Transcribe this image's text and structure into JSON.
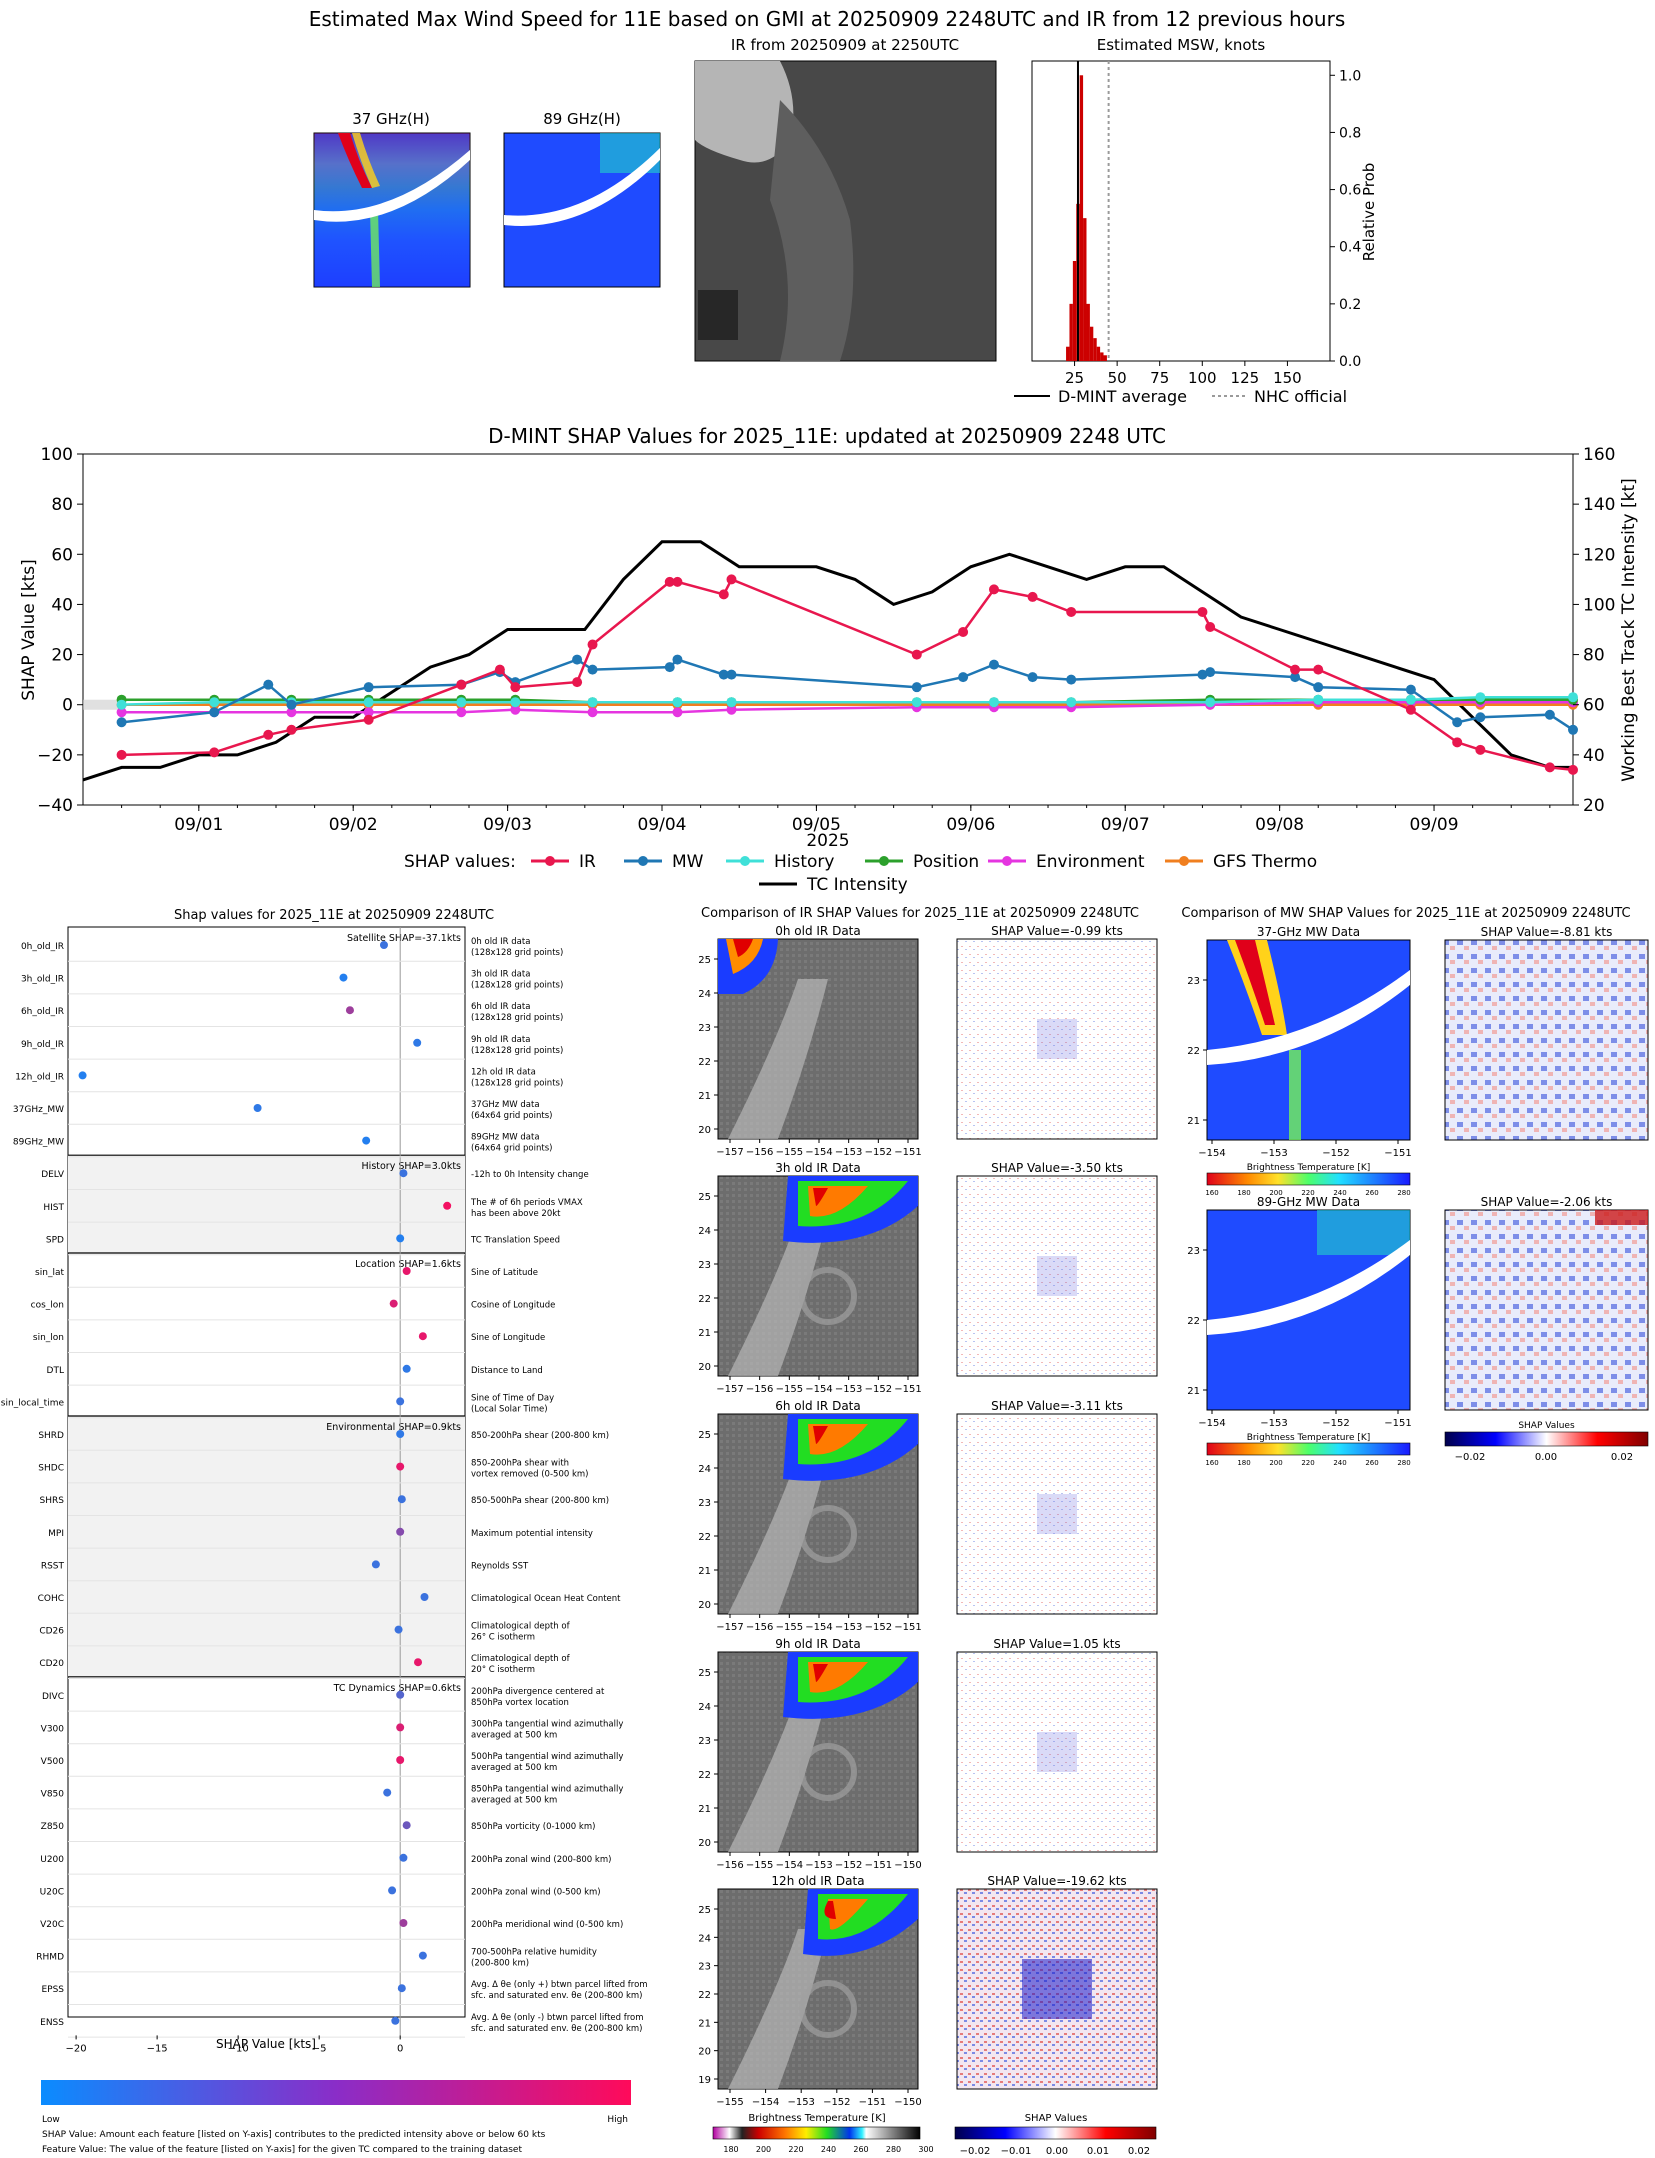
{
  "figure_title": "Estimated Max Wind Speed for 11E based on GMI at 20250909 2248UTC and IR from 12 previous hours",
  "panel_37": {
    "title": "37 GHz(H)"
  },
  "panel_89": {
    "title": "89 GHz(H)"
  },
  "panel_ir": {
    "title": "IR from 20250909 at 2250UTC"
  },
  "histogram": {
    "title": "Estimated MSW, knots",
    "ylabel": "Relative Prob",
    "xticks": [
      "25",
      "50",
      "75",
      "100",
      "125",
      "150"
    ],
    "yticks": [
      "0.0",
      "0.2",
      "0.4",
      "0.6",
      "0.8",
      "1.0"
    ],
    "legend": {
      "avg": "D-MINT average",
      "nhc": "NHC official"
    },
    "colors": {
      "bars": "#cc0000",
      "avg": "#000000",
      "nhc": "#9a9a9a"
    }
  },
  "shap_ts": {
    "title": "D-MINT SHAP Values for 2025_11E: updated at 20250909 2248 UTC",
    "xlabel": "2025",
    "ylabel_left": "SHAP Value [kts]",
    "ylabel_right": "Working Best Track TC Intensity [kt]",
    "xticks": [
      "09/01",
      "09/02",
      "09/03",
      "09/04",
      "09/05",
      "09/06",
      "09/07",
      "09/08",
      "09/09"
    ],
    "yticks_left": [
      "100",
      "80",
      "60",
      "40",
      "20",
      "0",
      "−20",
      "−40"
    ],
    "yticks_right": [
      "160",
      "140",
      "120",
      "100",
      "80",
      "60",
      "40",
      "20"
    ],
    "legend_label": "SHAP values:",
    "legend_items": [
      "IR",
      "MW",
      "History",
      "Position",
      "Environment",
      "GFS Thermo",
      "TC Intensity"
    ]
  },
  "shap_bar": {
    "title": "Shap values for 2025_11E at 20250909 2248UTC",
    "xlabel": "SHAP Value [kts]",
    "xticks": [
      "−20",
      "−15",
      "−10",
      "−5",
      "0"
    ],
    "groups": [
      {
        "label": "Satellite SHAP=-37.1kts"
      },
      {
        "label": "History SHAP=3.0kts"
      },
      {
        "label": "Location SHAP=1.6kts"
      },
      {
        "label": "Environmental SHAP=0.9kts"
      },
      {
        "label": "TC Dynamics SHAP=0.6kts"
      }
    ],
    "features": [
      {
        "name": "0h_old_IR",
        "desc": [
          "0h old IR data",
          "(128x128 grid points)"
        ]
      },
      {
        "name": "3h_old_IR",
        "desc": [
          "3h old IR data",
          "(128x128 grid points)"
        ]
      },
      {
        "name": "6h_old_IR",
        "desc": [
          "6h old IR data",
          "(128x128 grid points)"
        ]
      },
      {
        "name": "9h_old_IR",
        "desc": [
          "9h old IR data",
          "(128x128 grid points)"
        ]
      },
      {
        "name": "12h_old_IR",
        "desc": [
          "12h old IR data",
          "(128x128 grid points)"
        ]
      },
      {
        "name": "37GHz_MW",
        "desc": [
          "37GHz MW data",
          "(64x64 grid points)"
        ]
      },
      {
        "name": "89GHz_MW",
        "desc": [
          "89GHz MW data",
          "(64x64 grid points)"
        ]
      },
      {
        "name": "DELV",
        "desc": [
          "-12h to 0h Intensity change"
        ]
      },
      {
        "name": "HIST",
        "desc": [
          "The # of 6h periods VMAX",
          "has been above 20kt"
        ]
      },
      {
        "name": "SPD",
        "desc": [
          "TC Translation Speed"
        ]
      },
      {
        "name": "sin_lat",
        "desc": [
          "Sine of Latitude"
        ]
      },
      {
        "name": "cos_lon",
        "desc": [
          "Cosine of Longitude"
        ]
      },
      {
        "name": "sin_lon",
        "desc": [
          "Sine of Longitude"
        ]
      },
      {
        "name": "DTL",
        "desc": [
          "Distance to Land"
        ]
      },
      {
        "name": "sin_local_time",
        "desc": [
          "Sine of Time of Day",
          "(Local Solar Time)"
        ]
      },
      {
        "name": "SHRD",
        "desc": [
          "850-200hPa shear (200-800 km)"
        ]
      },
      {
        "name": "SHDC",
        "desc": [
          "850-200hPa shear with",
          "vortex removed (0-500 km)"
        ]
      },
      {
        "name": "SHRS",
        "desc": [
          "850-500hPa shear (200-800 km)"
        ]
      },
      {
        "name": "MPI",
        "desc": [
          "Maximum potential intensity"
        ]
      },
      {
        "name": "RSST",
        "desc": [
          "Reynolds SST"
        ]
      },
      {
        "name": "COHC",
        "desc": [
          "Climatological Ocean Heat Content"
        ]
      },
      {
        "name": "CD26",
        "desc": [
          "Climatological depth of",
          "26° C isotherm"
        ]
      },
      {
        "name": "CD20",
        "desc": [
          "Climatological depth of",
          "20° C isotherm"
        ]
      },
      {
        "name": "DIVC",
        "desc": [
          "200hPa divergence centered at",
          "850hPa vortex location"
        ]
      },
      {
        "name": "V300",
        "desc": [
          "300hPa tangential wind azimuthally",
          "averaged at 500 km"
        ]
      },
      {
        "name": "V500",
        "desc": [
          "500hPa tangential wind azimuthally",
          "averaged at 500 km"
        ]
      },
      {
        "name": "V850",
        "desc": [
          "850hPa tangential wind azimuthally",
          "averaged at 500 km"
        ]
      },
      {
        "name": "Z850",
        "desc": [
          "850hPa vorticity (0-1000 km)"
        ]
      },
      {
        "name": "U200",
        "desc": [
          "200hPa zonal wind (200-800 km)"
        ]
      },
      {
        "name": "U20C",
        "desc": [
          "200hPa zonal wind (0-500 km)"
        ]
      },
      {
        "name": "V20C",
        "desc": [
          "200hPa meridional wind (0-500 km)"
        ]
      },
      {
        "name": "RHMD",
        "desc": [
          "700-500hPa relative humidity",
          "(200-800 km)"
        ]
      },
      {
        "name": "EPSS",
        "desc": [
          "Avg. Δ θe (only +) btwn parcel lifted from",
          "sfc. and saturated env. θe (200-800 km)"
        ]
      },
      {
        "name": "ENSS",
        "desc": [
          "Avg. Δ θe (only -) btwn parcel lifted from",
          "sfc. and saturated env. θe (200-800 km)"
        ]
      }
    ],
    "colorbar": {
      "low": "Low",
      "high": "High"
    },
    "footnote_1": "SHAP Value: Amount each feature [listed on Y-axis] contributes to the predicted intensity above or below 60 kts",
    "footnote_2": "Feature Value: The value of the feature [listed on Y-axis] for the given TC compared to the training dataset"
  },
  "ir_compare": {
    "title": "Comparison of IR SHAP Values for 2025_11E at 20250909 2248UTC",
    "rows": [
      {
        "data_title": "0h old IR Data",
        "shap_title": "SHAP Value=-0.99 kts",
        "yticks": [
          "25",
          "24",
          "23",
          "22",
          "21",
          "20"
        ],
        "xticks": [
          "−157",
          "−156",
          "−155",
          "−154",
          "−153",
          "−152",
          "−151"
        ]
      },
      {
        "data_title": "3h old IR Data",
        "shap_title": "SHAP Value=-3.50 kts",
        "yticks": [
          "25",
          "24",
          "23",
          "22",
          "21",
          "20"
        ],
        "xticks": [
          "−157",
          "−156",
          "−155",
          "−154",
          "−153",
          "−152",
          "−151"
        ]
      },
      {
        "data_title": "6h old IR Data",
        "shap_title": "SHAP Value=-3.11 kts",
        "yticks": [
          "25",
          "24",
          "23",
          "22",
          "21",
          "20"
        ],
        "xticks": [
          "−157",
          "−156",
          "−155",
          "−154",
          "−153",
          "−152",
          "−151"
        ]
      },
      {
        "data_title": "9h old IR Data",
        "shap_title": "SHAP Value=1.05 kts",
        "yticks": [
          "25",
          "24",
          "23",
          "22",
          "21",
          "20"
        ],
        "xticks": [
          "−156",
          "−155",
          "−154",
          "−153",
          "−152",
          "−151",
          "−150"
        ]
      },
      {
        "data_title": "12h old IR Data",
        "shap_title": "SHAP Value=-19.62 kts",
        "yticks": [
          "25",
          "24",
          "23",
          "22",
          "21",
          "20",
          "19"
        ],
        "xticks": [
          "−155",
          "−154",
          "−153",
          "−152",
          "−151",
          "−150"
        ]
      }
    ],
    "bt_label": "Brightness Temperature [K]",
    "bt_ticks": [
      "180",
      "200",
      "220",
      "240",
      "260",
      "280",
      "300"
    ],
    "shap_label": "SHAP Values",
    "shap_ticks": [
      "−0.02",
      "−0.01",
      "0.00",
      "0.01",
      "0.02"
    ]
  },
  "mw_compare": {
    "title": "Comparison of MW SHAP Values for 2025_11E at 20250909 2248UTC",
    "rows": [
      {
        "data_title": "37-GHz MW Data",
        "shap_title": "SHAP Value=-8.81 kts"
      },
      {
        "data_title": "89-GHz MW Data",
        "shap_title": "SHAP Value=-2.06 kts"
      }
    ],
    "yticks": [
      "23",
      "22",
      "21"
    ],
    "xticks": [
      "−154",
      "−153",
      "−152",
      "−151"
    ],
    "bt_label": "Brightness Temperature [K]",
    "bt_ticks": [
      "160",
      "180",
      "200",
      "220",
      "240",
      "260",
      "280"
    ],
    "shap_label": "SHAP Values",
    "shap_ticks": [
      "−0.02",
      "0.00",
      "0.02"
    ]
  },
  "colors": {
    "IR": "#e8174e",
    "MW": "#1f77b4",
    "History": "#3fe0d8",
    "Position": "#2ca02c",
    "Environment": "#e535e0",
    "GFS Thermo": "#f07f1f",
    "TC Intensity": "#000000"
  },
  "chart_data": [
    {
      "type": "bar",
      "title": "Estimated MSW, knots",
      "ylabel": "Relative Prob",
      "xlim": [
        0,
        175
      ],
      "ylim": [
        0,
        1.05
      ],
      "bins": [
        20,
        22,
        24,
        26,
        28,
        30,
        32,
        34,
        36,
        38,
        40,
        42
      ],
      "values": [
        0.05,
        0.2,
        0.35,
        0.55,
        1.0,
        0.5,
        0.2,
        0.12,
        0.08,
        0.05,
        0.03,
        0.02
      ],
      "avg": 27,
      "nhc": 45
    },
    {
      "type": "line",
      "title": "D-MINT SHAP Values for 2025_11E: updated at 20250909 2248 UTC",
      "xlabel": "2025",
      "ylim_left": [
        -40,
        100
      ],
      "ylim_right": [
        20,
        160
      ],
      "xlim_days": [
        0.25,
        9.9
      ],
      "series": [
        {
          "name": "IR",
          "axis": "left",
          "x": [
            0.5,
            1.1,
            1.45,
            1.6,
            2.1,
            2.7,
            2.95,
            3.05,
            3.45,
            3.55,
            4.05,
            4.1,
            4.4,
            4.45,
            5.65,
            5.95,
            6.15,
            6.4,
            6.65,
            7.5,
            7.55,
            8.1,
            8.25,
            8.85,
            9.15,
            9.3,
            9.75,
            9.9
          ],
          "y": [
            -20,
            -19,
            -12,
            -10,
            -6,
            8,
            14,
            7,
            9,
            24,
            49,
            49,
            44,
            50,
            20,
            29,
            46,
            43,
            37,
            37,
            31,
            14,
            14,
            -2,
            -15,
            -18,
            -25,
            -26
          ]
        },
        {
          "name": "MW",
          "axis": "left",
          "x": [
            0.5,
            1.1,
            1.45,
            1.6,
            2.1,
            2.7,
            2.95,
            3.05,
            3.45,
            3.55,
            4.05,
            4.1,
            4.4,
            4.45,
            5.65,
            5.95,
            6.15,
            6.4,
            6.65,
            7.5,
            7.55,
            8.1,
            8.25,
            8.85,
            9.15,
            9.3,
            9.75,
            9.9
          ],
          "y": [
            -7,
            -3,
            8,
            0,
            7,
            8,
            13,
            9,
            18,
            14,
            15,
            18,
            12,
            12,
            7,
            11,
            16,
            11,
            10,
            12,
            13,
            11,
            7,
            6,
            -7,
            -5,
            -4,
            -10
          ]
        },
        {
          "name": "History",
          "axis": "left",
          "x": [
            0.5,
            1.1,
            1.6,
            2.1,
            2.7,
            3.05,
            3.55,
            4.1,
            4.45,
            5.65,
            6.15,
            6.65,
            7.55,
            8.25,
            8.85,
            9.3,
            9.9
          ],
          "y": [
            0,
            1,
            1,
            1,
            1,
            1,
            1,
            1,
            1,
            1,
            1,
            1,
            1,
            2,
            2,
            3,
            3
          ]
        },
        {
          "name": "Position",
          "axis": "left",
          "x": [
            0.5,
            1.1,
            1.6,
            2.1,
            2.7,
            3.05,
            3.55,
            4.1,
            4.45,
            5.65,
            6.15,
            6.65,
            7.55,
            8.25,
            8.85,
            9.3,
            9.9
          ],
          "y": [
            2,
            2,
            2,
            2,
            2,
            2,
            1,
            1,
            1,
            1,
            1,
            1,
            2,
            2,
            2,
            2,
            2
          ]
        },
        {
          "name": "Environment",
          "axis": "left",
          "x": [
            0.5,
            1.1,
            1.6,
            2.1,
            2.7,
            3.05,
            3.55,
            4.1,
            4.45,
            5.65,
            6.15,
            6.65,
            7.55,
            8.25,
            8.85,
            9.3,
            9.9
          ],
          "y": [
            -3,
            -3,
            -3,
            -3,
            -3,
            -2,
            -3,
            -3,
            -2,
            -1,
            -1,
            -1,
            0,
            1,
            1,
            1,
            1
          ]
        },
        {
          "name": "GFS Thermo",
          "axis": "left",
          "x": [
            0.5,
            1.1,
            1.6,
            2.1,
            2.7,
            3.05,
            3.55,
            4.1,
            4.45,
            5.65,
            6.15,
            6.65,
            7.55,
            8.25,
            8.85,
            9.3,
            9.9
          ],
          "y": [
            0,
            0,
            0,
            0,
            0,
            0,
            0,
            0,
            0,
            0,
            0,
            0,
            0,
            0,
            0,
            0,
            0
          ]
        },
        {
          "name": "TC Intensity",
          "axis": "right",
          "x": [
            0.25,
            0.5,
            0.75,
            1.0,
            1.25,
            1.5,
            1.75,
            2.0,
            2.25,
            2.5,
            2.75,
            3.0,
            3.25,
            3.5,
            3.75,
            4.0,
            4.25,
            4.5,
            4.75,
            5.0,
            5.25,
            5.5,
            5.75,
            6.0,
            6.25,
            6.5,
            6.75,
            7.0,
            7.25,
            7.5,
            7.75,
            8.0,
            8.25,
            8.5,
            8.75,
            9.0,
            9.25,
            9.5,
            9.75,
            9.9
          ],
          "y": [
            30,
            35,
            35,
            40,
            40,
            45,
            55,
            55,
            65,
            75,
            80,
            90,
            90,
            90,
            110,
            125,
            125,
            115,
            115,
            115,
            110,
            100,
            105,
            115,
            120,
            115,
            110,
            115,
            115,
            105,
            95,
            90,
            85,
            80,
            75,
            70,
            55,
            40,
            35,
            35
          ]
        }
      ]
    },
    {
      "type": "scatter",
      "title": "Shap values for 2025_11E at 20250909 2248UTC",
      "xlabel": "SHAP Value [kts]",
      "xlim": [
        -20.5,
        4
      ],
      "categories": [
        "0h_old_IR",
        "3h_old_IR",
        "6h_old_IR",
        "9h_old_IR",
        "12h_old_IR",
        "37GHz_MW",
        "89GHz_MW",
        "DELV",
        "HIST",
        "SPD",
        "sin_lat",
        "cos_lon",
        "sin_lon",
        "DTL",
        "sin_local_time",
        "SHRD",
        "SHDC",
        "SHRS",
        "MPI",
        "RSST",
        "COHC",
        "CD26",
        "CD20",
        "DIVC",
        "V300",
        "V500",
        "V850",
        "Z850",
        "U200",
        "U20C",
        "V20C",
        "RHMD",
        "EPSS",
        "ENSS"
      ],
      "values": [
        -1.0,
        -3.5,
        -3.1,
        1.05,
        -19.6,
        -8.8,
        -2.1,
        0.2,
        2.9,
        0.0,
        0.4,
        -0.4,
        1.4,
        0.4,
        0.0,
        0.0,
        0.0,
        0.1,
        0.0,
        -1.5,
        1.5,
        -0.1,
        1.1,
        0.0,
        0.0,
        0.0,
        -0.8,
        0.4,
        0.2,
        -0.5,
        0.2,
        1.4,
        0.1,
        -0.3
      ],
      "feature_values": [
        0.2,
        0.1,
        0.6,
        0.15,
        0.1,
        0.15,
        0.1,
        0.2,
        0.95,
        0.1,
        0.9,
        0.85,
        0.9,
        0.15,
        0.2,
        0.15,
        0.9,
        0.2,
        0.5,
        0.2,
        0.2,
        0.2,
        0.9,
        0.3,
        0.85,
        0.9,
        0.2,
        0.4,
        0.2,
        0.2,
        0.6,
        0.2,
        0.2,
        0.2
      ]
    }
  ]
}
